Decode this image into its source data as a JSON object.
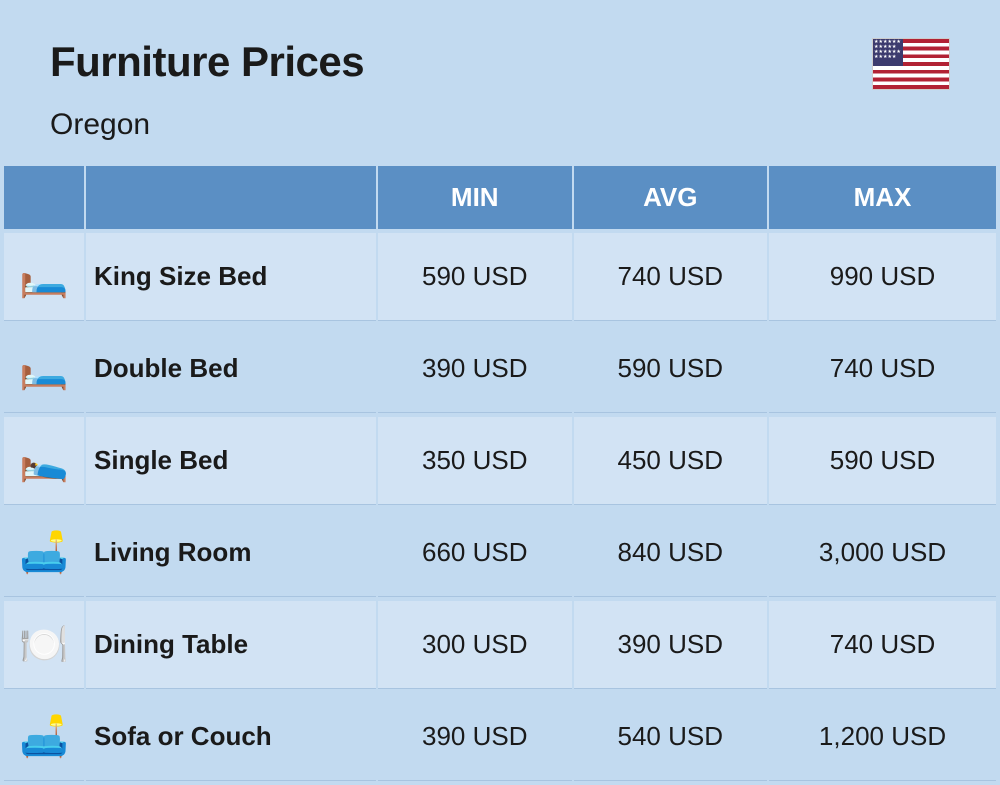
{
  "header": {
    "title": "Furniture Prices",
    "subtitle": "Oregon"
  },
  "flag": {
    "country": "USA"
  },
  "table": {
    "columns": {
      "min": "MIN",
      "avg": "AVG",
      "max": "MAX"
    },
    "currency": "USD",
    "header_bg": "#5b8fc4",
    "header_text_color": "#ffffff",
    "row_bg_odd": "#d2e3f4",
    "row_bg_even": "#c2daf0",
    "rows": [
      {
        "icon": "🛏️",
        "name": "King Size Bed",
        "min": "590 USD",
        "avg": "740 USD",
        "max": "990 USD"
      },
      {
        "icon": "🛏️",
        "name": "Double Bed",
        "min": "390 USD",
        "avg": "590 USD",
        "max": "740 USD"
      },
      {
        "icon": "🛌",
        "name": "Single Bed",
        "min": "350 USD",
        "avg": "450 USD",
        "max": "590 USD"
      },
      {
        "icon": "🛋️",
        "name": "Living Room",
        "min": "660 USD",
        "avg": "840 USD",
        "max": "3,000 USD"
      },
      {
        "icon": "🍽️",
        "name": "Dining Table",
        "min": "300 USD",
        "avg": "390 USD",
        "max": "740 USD"
      },
      {
        "icon": "🛋️",
        "name": "Sofa or Couch",
        "min": "390 USD",
        "avg": "540 USD",
        "max": "1,200 USD"
      }
    ]
  },
  "colors": {
    "page_bg": "#c2daf0",
    "title_color": "#1a1a1a"
  }
}
